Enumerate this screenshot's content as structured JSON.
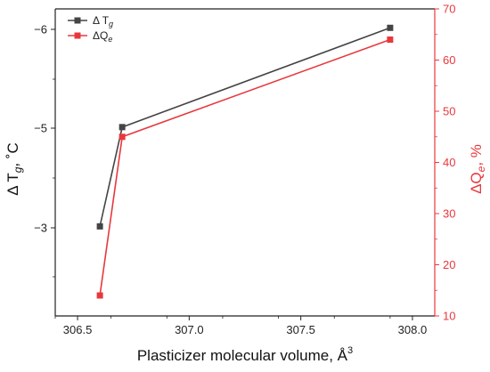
{
  "chart_data": {
    "type": "line",
    "xlabel": "Plasticizer molecular volume, Å",
    "xlabel_sup": "3",
    "ylabel_left": {
      "main": "Δ T",
      "sub": "g",
      "tail": ", ˚C"
    },
    "ylabel_right": {
      "main": "ΔQ",
      "sub": "e",
      "tail": ", %"
    },
    "x_ticks": [
      "306.5",
      "307.0",
      "307.5",
      "308.0"
    ],
    "x_tick_values": [
      306.5,
      307.0,
      307.5,
      308.0
    ],
    "xlim": [
      306.4,
      308.1
    ],
    "y_left_ticks": [
      "−6",
      "−5",
      "−3"
    ],
    "y_left_tick_values": [
      -6,
      -5,
      -3
    ],
    "y_left_ticks_note": "left axis is non-uniform; ticks printed −6, −5, −3 at evenly spaced positions",
    "y_right_ticks": [
      "10",
      "20",
      "30",
      "40",
      "50",
      "60",
      "70"
    ],
    "y_right_tick_values": [
      10,
      20,
      30,
      40,
      50,
      60,
      70
    ],
    "ylim_right": [
      10,
      70
    ],
    "legend_position": "top-left",
    "series": [
      {
        "name": "Δ T",
        "name_sub": "g",
        "axis": "left",
        "color": "#444444",
        "marker": "square",
        "x": [
          306.6,
          306.7,
          307.9
        ],
        "y_right_scale_equiv": [
          27.5,
          46.9,
          66.3
        ],
        "y": [
          -3,
          -5,
          -6
        ]
      },
      {
        "name": "ΔQ",
        "name_sub": "e",
        "axis": "right",
        "color": "#e8383d",
        "marker": "square",
        "x": [
          306.6,
          306.7,
          307.9
        ],
        "y": [
          14,
          45,
          64
        ]
      }
    ]
  }
}
